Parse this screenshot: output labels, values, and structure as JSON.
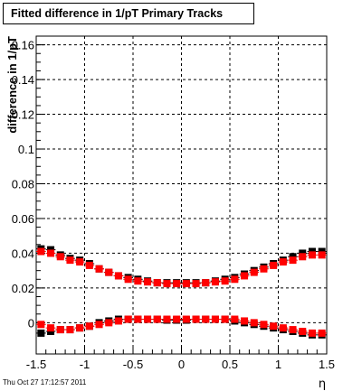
{
  "chart_data": {
    "type": "scatter",
    "title": "Fitted difference in 1/pT  Primary Tracks",
    "xlabel": "η",
    "ylabel": "difference in 1/pT",
    "xlim": [
      -1.5,
      1.5
    ],
    "ylim": [
      -0.018,
      0.165
    ],
    "x_ticks": [
      -1.5,
      -1,
      -0.5,
      0,
      0.5,
      1,
      1.5
    ],
    "x_tick_labels": [
      "-1.5",
      "-1",
      "-0.5",
      "0",
      "0.5",
      "1",
      "1.5"
    ],
    "y_ticks": [
      0,
      0.02,
      0.04,
      0.06,
      0.08,
      0.1,
      0.12,
      0.14,
      0.16
    ],
    "y_tick_labels": [
      "0",
      "0.02",
      "0.04",
      "0.06",
      "0.08",
      "0.1",
      "0.12",
      "0.14",
      "0.16"
    ],
    "grid": true,
    "footer": "Thu Oct 27 17:12:57 2011",
    "series": [
      {
        "color": "#000000",
        "x": [
          -1.45,
          -1.35,
          -1.25,
          -1.15,
          -1.05,
          -0.95,
          -0.85,
          -0.75,
          -0.65,
          -0.55,
          -0.45,
          -0.35,
          -0.25,
          -0.15,
          -0.05,
          0.05,
          0.15,
          0.25,
          0.35,
          0.45,
          0.55,
          0.65,
          0.75,
          0.85,
          0.95,
          1.05,
          1.15,
          1.25,
          1.35,
          1.45
        ],
        "values": [
          0.0425,
          0.042,
          0.039,
          0.037,
          0.036,
          0.034,
          0.031,
          0.029,
          0.027,
          0.026,
          0.025,
          0.024,
          0.023,
          0.023,
          0.023,
          0.023,
          0.023,
          0.023,
          0.024,
          0.025,
          0.026,
          0.028,
          0.03,
          0.032,
          0.034,
          0.036,
          0.038,
          0.04,
          0.041,
          0.041
        ]
      },
      {
        "color": "#ff0000",
        "x": [
          -1.45,
          -1.35,
          -1.25,
          -1.15,
          -1.05,
          -0.95,
          -0.85,
          -0.75,
          -0.65,
          -0.55,
          -0.45,
          -0.35,
          -0.25,
          -0.15,
          -0.05,
          0.05,
          0.15,
          0.25,
          0.35,
          0.45,
          0.55,
          0.65,
          0.75,
          0.85,
          0.95,
          1.05,
          1.15,
          1.25,
          1.35,
          1.45
        ],
        "values": [
          0.041,
          0.04,
          0.038,
          0.036,
          0.035,
          0.033,
          0.031,
          0.029,
          0.027,
          0.025,
          0.024,
          0.0235,
          0.023,
          0.0225,
          0.0225,
          0.0225,
          0.0225,
          0.023,
          0.0235,
          0.024,
          0.025,
          0.027,
          0.029,
          0.031,
          0.033,
          0.035,
          0.036,
          0.038,
          0.039,
          0.039
        ]
      },
      {
        "color": "#000000",
        "x": [
          -1.45,
          -1.35,
          -1.25,
          -1.15,
          -1.05,
          -0.95,
          -0.85,
          -0.75,
          -0.65,
          -0.55,
          -0.45,
          -0.35,
          -0.25,
          -0.15,
          -0.05,
          0.05,
          0.15,
          0.25,
          0.35,
          0.45,
          0.55,
          0.65,
          0.75,
          0.85,
          0.95,
          1.05,
          1.15,
          1.25,
          1.35,
          1.45
        ],
        "values": [
          -0.006,
          -0.005,
          -0.004,
          -0.004,
          -0.003,
          -0.002,
          0.0,
          0.001,
          0.002,
          0.002,
          0.002,
          0.002,
          0.002,
          0.0015,
          0.0015,
          0.0015,
          0.002,
          0.002,
          0.002,
          0.002,
          0.001,
          0.0,
          -0.001,
          -0.002,
          -0.003,
          -0.004,
          -0.005,
          -0.006,
          -0.007,
          -0.007
        ]
      },
      {
        "color": "#ff0000",
        "x": [
          -1.45,
          -1.35,
          -1.25,
          -1.15,
          -1.05,
          -0.95,
          -0.85,
          -0.75,
          -0.65,
          -0.55,
          -0.45,
          -0.35,
          -0.25,
          -0.15,
          -0.05,
          0.05,
          0.15,
          0.25,
          0.35,
          0.45,
          0.55,
          0.65,
          0.75,
          0.85,
          0.95,
          1.05,
          1.15,
          1.25,
          1.35,
          1.45
        ],
        "values": [
          -0.001,
          -0.003,
          -0.004,
          -0.004,
          -0.003,
          -0.002,
          -0.001,
          0.0,
          0.001,
          0.002,
          0.002,
          0.002,
          0.002,
          0.002,
          0.002,
          0.002,
          0.002,
          0.002,
          0.002,
          0.002,
          0.002,
          0.001,
          0.0,
          -0.001,
          -0.002,
          -0.003,
          -0.004,
          -0.005,
          -0.006,
          -0.006
        ]
      }
    ]
  }
}
